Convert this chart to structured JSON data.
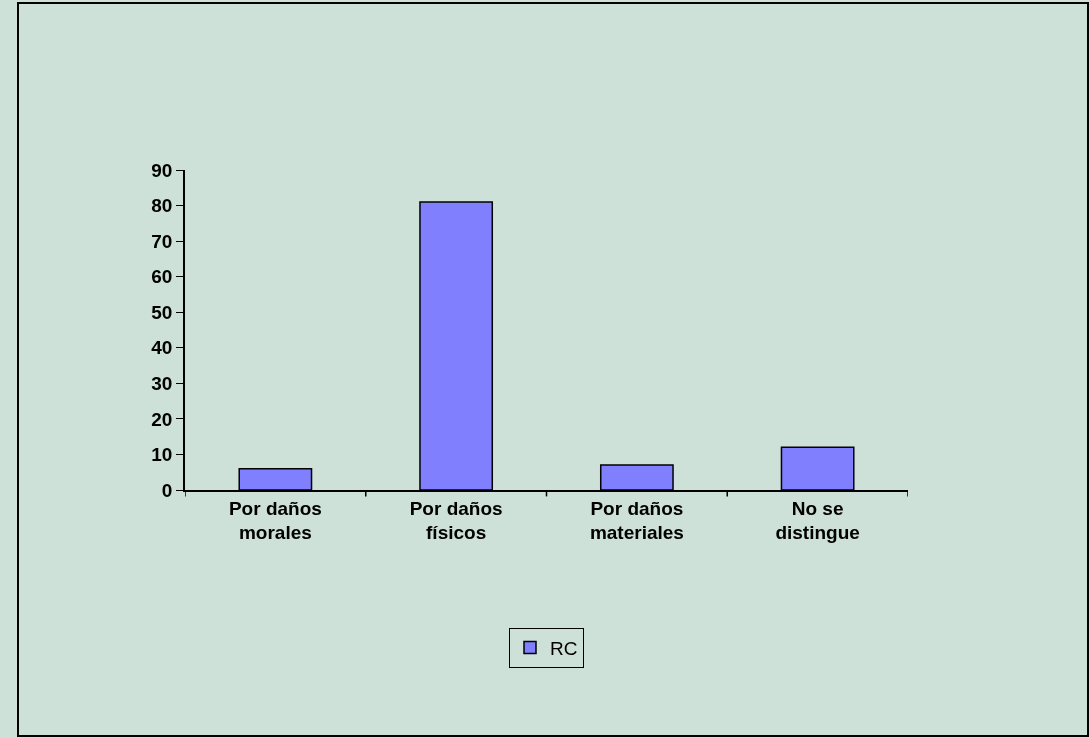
{
  "chart_data": {
    "type": "bar",
    "categories": [
      "Por daños morales",
      "Por daños físicos",
      "Por daños materiales",
      "No se distingue"
    ],
    "series": [
      {
        "name": "RC",
        "color": "#8080ff",
        "values": [
          6,
          81,
          7,
          12
        ]
      }
    ],
    "ylim": [
      0,
      90
    ],
    "yticks": [
      0,
      10,
      20,
      30,
      40,
      50,
      60,
      70,
      80,
      90
    ],
    "grid": false,
    "legend": "bottom"
  }
}
